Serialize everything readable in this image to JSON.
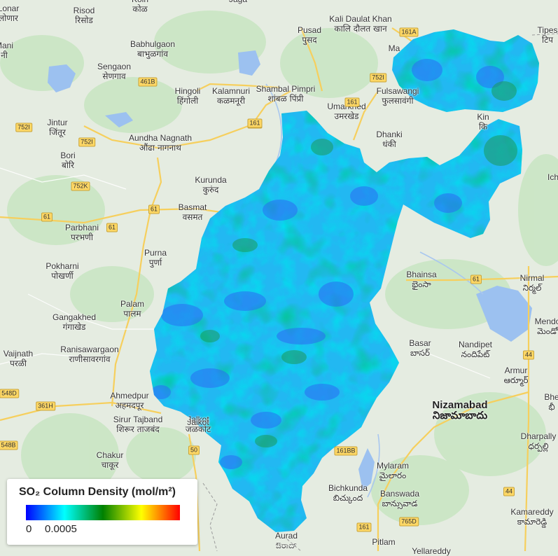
{
  "legend": {
    "title": "SO₂ Column Density (mol/m²)",
    "min_label": "0",
    "max_label": "0.0005",
    "colors": [
      "#0000ff",
      "#00ffff",
      "#008000",
      "#ffff00",
      "#ff0000"
    ]
  },
  "places": [
    {
      "en": "Risod",
      "loc": "रिसोड"
    },
    {
      "en": "Babhulgaon",
      "loc": "बाभुळगांव"
    },
    {
      "en": "Sengaon",
      "loc": "सेणगाव"
    },
    {
      "en": "Hingoli",
      "loc": "हिंगोली"
    },
    {
      "en": "Kalamnuri",
      "loc": "कळमनूरी"
    },
    {
      "en": "Shambal Pimpri",
      "loc": "शांबळ पिंप्री"
    },
    {
      "en": "Pusad",
      "loc": "पुसद"
    },
    {
      "en": "Kali Daulat Khan",
      "loc": "कालि दौलत खान"
    },
    {
      "en": "Fulsawangi",
      "loc": "फुलसावंगी"
    },
    {
      "en": "Umarkhed",
      "loc": "उमरखेड"
    },
    {
      "en": "Dhanki",
      "loc": "धंकी"
    },
    {
      "en": "Jintur",
      "loc": "जिंतूर"
    },
    {
      "en": "Aundha Nagnath",
      "loc": "औंढा नागनाथ"
    },
    {
      "en": "Bori",
      "loc": "बोरि"
    },
    {
      "en": "Kurunda",
      "loc": "कुरुंद"
    },
    {
      "en": "Basmat",
      "loc": "वसमत"
    },
    {
      "en": "Parbhani",
      "loc": "परभणी"
    },
    {
      "en": "Purna",
      "loc": "पुर्णा"
    },
    {
      "en": "Pokharni",
      "loc": "पोखर्णी"
    },
    {
      "en": "Palam",
      "loc": "पालम"
    },
    {
      "en": "Gangakhed",
      "loc": "गंगाखेड"
    },
    {
      "en": "Ranisawargaon",
      "loc": "राणीसावरगांव"
    },
    {
      "en": "Vaijnath",
      "loc": "परळी"
    },
    {
      "en": "Ahmedpur",
      "loc": "अहमदपूर"
    },
    {
      "en": "Sirur Tajband",
      "loc": "शिरूर ताजबंद"
    },
    {
      "en": "Jalkot",
      "loc": "जळकोट"
    },
    {
      "en": "Chakur",
      "loc": "चाकूर"
    },
    {
      "en": "Bhainsa",
      "loc": "భైంసా"
    },
    {
      "en": "Nirmal",
      "loc": "నిర్మల్"
    },
    {
      "en": "Basar",
      "loc": "బాసర్"
    },
    {
      "en": "Nandipet",
      "loc": "నందిపేట్"
    },
    {
      "en": "Armur",
      "loc": "ఆర్మూర్"
    },
    {
      "en": "Nizamabad",
      "loc": "నిజామాబాదు"
    },
    {
      "en": "Dharpally",
      "loc": "ధర్పల్లి"
    },
    {
      "en": "Mylaram",
      "loc": "మైలారం"
    },
    {
      "en": "Bichkunda",
      "loc": "బిచ్కుంద"
    },
    {
      "en": "Banswada",
      "loc": "బాన్సువాడ"
    },
    {
      "en": "Kamareddy",
      "loc": "కామారెడ్డి"
    },
    {
      "en": "Aurad",
      "loc": "ಔರಾದ್"
    },
    {
      "en": "Pitlam",
      "loc": ""
    },
    {
      "en": "Yellareddy",
      "loc": ""
    },
    {
      "en": "Tipes",
      "loc": "टिप"
    },
    {
      "en": "Mendo",
      "loc": "మెండో"
    },
    {
      "en": "Ich",
      "loc": ""
    },
    {
      "en": "Bhe",
      "loc": "భీ"
    },
    {
      "en": "Kin",
      "loc": "कि"
    },
    {
      "en": "Ma",
      "loc": ""
    },
    {
      "en": "Jaikot",
      "loc": ""
    },
    {
      "en": "Lonar",
      "loc": "लोणार"
    },
    {
      "en": "Mani",
      "loc": "नी"
    },
    {
      "en": "Kolh",
      "loc": "कोळ"
    },
    {
      "en": "Jaga",
      "loc": ""
    }
  ],
  "shields": [
    "461B",
    "752I",
    "752I",
    "752K",
    "61",
    "61",
    "61",
    "361",
    "161",
    "161A",
    "752I",
    "61",
    "44",
    "44",
    "548D",
    "361H",
    "548B",
    "50",
    "161BB",
    "161",
    "765D",
    "161"
  ]
}
